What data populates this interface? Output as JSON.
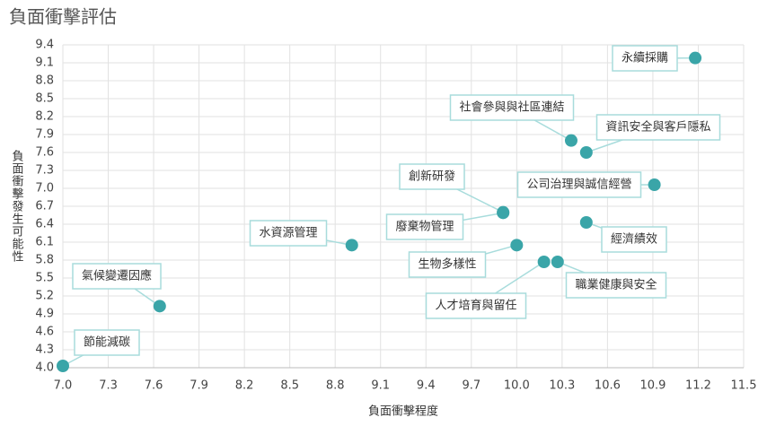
{
  "chart_data": {
    "type": "scatter",
    "title": "負面衝擊評估",
    "x_label": "負面衝擊程度",
    "y_label": "負面衝擊發生可能性",
    "point_labels": [
      "節能減碳",
      "氣候變遷因應",
      "水資源管理",
      "廢棄物管理",
      "創新研發",
      "生物多樣性",
      "人才培育與留任",
      "職業健康與安全",
      "社會參與與社區連結",
      "資訊安全與客戶隱私",
      "經濟績效",
      "公司治理與誠信經營",
      "永續採購"
    ],
    "x": [
      7.0,
      7.64,
      8.91,
      9.91,
      9.91,
      10.0,
      10.18,
      10.27,
      10.36,
      10.46,
      10.46,
      10.91,
      11.18
    ],
    "values": [
      4.03,
      5.03,
      6.05,
      6.59,
      6.6,
      6.05,
      5.77,
      5.77,
      7.8,
      7.6,
      6.43,
      7.06,
      9.18
    ],
    "color": "#3aa5a8",
    "xlim": [
      7.0,
      11.5
    ],
    "ylim": [
      4.0,
      9.4
    ],
    "xticks": [
      {
        "value": 7.0,
        "label": "7.0"
      },
      7.3,
      7.6,
      7.9,
      8.2,
      8.5,
      8.8,
      9.1,
      9.4,
      9.7,
      {
        "value": 10.0,
        "label": "10.0"
      },
      10.3,
      10.6,
      10.9,
      11.2,
      11.5
    ],
    "yticks": [
      {
        "value": 4.0,
        "label": "4.0"
      },
      4.3,
      4.6,
      4.9,
      5.2,
      5.5,
      5.8,
      6.1,
      6.4,
      6.7,
      {
        "value": 7.0,
        "label": "7.0"
      },
      7.3,
      7.6,
      7.9,
      8.2,
      8.5,
      8.8,
      9.1,
      9.4
    ],
    "grid": true
  }
}
